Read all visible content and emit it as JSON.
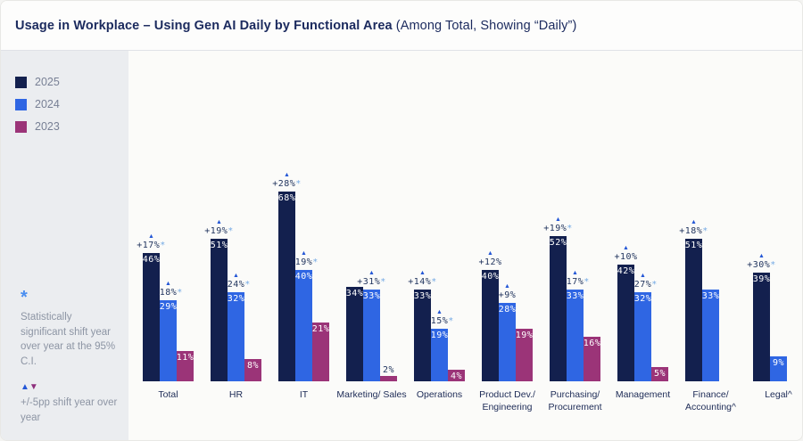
{
  "header": {
    "title_bold": "Usage in Workplace – Using Gen AI Daily by Functional Area",
    "title_regular": " (Among Total, Showing “Daily”)"
  },
  "sidebar": {
    "footnotes": {
      "star_symbol": "*",
      "significance_note": "Statistically significant shift year over year at the 95% C.I.",
      "up_triangle": "▲",
      "down_triangle": "▼",
      "shift_note": "+/-5pp shift year over year"
    }
  },
  "colors": {
    "series_2025": "#13204e",
    "series_2024": "#2f66e3",
    "series_2023": "#9b3478",
    "annotation_triangle": "#2457d6",
    "annotation_star": "#74aae4",
    "title_text": "#1b2a5e",
    "footnote_text": "#8d95a4",
    "sidebar_bg": "#ebedf0"
  },
  "chart_data": {
    "type": "bar",
    "title": "Usage in Workplace – Using Gen AI Daily by Functional Area (Among Total, Showing “Daily”)",
    "value_suffix": "%",
    "grid": false,
    "legend_position": "left",
    "annotation_marker": "▲",
    "categories": [
      "Total",
      "HR",
      "IT",
      "Marketing/ Sales",
      "Operations",
      "Product Dev./\nEngineering",
      "Purchasing/\nProcurement",
      "Management",
      "Finance/\nAccounting^",
      "Legal^"
    ],
    "series": [
      {
        "name": "2025",
        "color": "#13204e",
        "values": [
          46,
          51,
          68,
          34,
          33,
          40,
          52,
          42,
          51,
          39
        ],
        "annotations": [
          "+17%*",
          "+19%*",
          "+28%*",
          null,
          "+14%*",
          "+12%",
          "+19%*",
          "+10%",
          "+18%*",
          "+30%*"
        ]
      },
      {
        "name": "2024",
        "color": "#2f66e3",
        "values": [
          29,
          32,
          40,
          33,
          19,
          28,
          33,
          32,
          33,
          9
        ],
        "annotations": [
          "+18%*",
          "+24%*",
          "+19%*",
          "+31%*",
          "+15%*",
          "+9%",
          "+17%*",
          "+27%*",
          null,
          null
        ]
      },
      {
        "name": "2023",
        "color": "#9b3478",
        "values": [
          11,
          8,
          21,
          2,
          4,
          19,
          16,
          5,
          null,
          null
        ],
        "annotations": [
          null,
          null,
          null,
          null,
          null,
          null,
          null,
          null,
          null,
          null
        ]
      }
    ]
  }
}
